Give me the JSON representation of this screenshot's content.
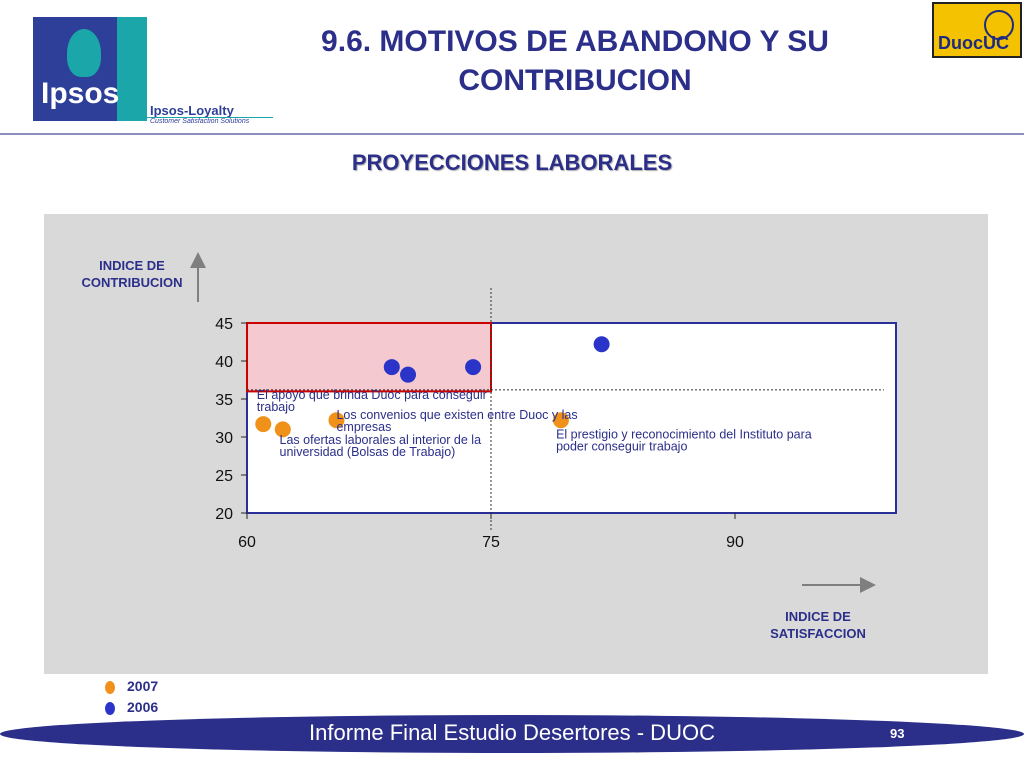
{
  "header": {
    "title_line1": "9.6. MOTIVOS DE ABANDONO Y SU",
    "title_line2": "CONTRIBUCION",
    "ipsos_word": "Ipsos",
    "loyalty_name": "Ipsos-Loyalty",
    "loyalty_tagline": "Customer Satisfaction Solutions",
    "duoc_word": "DuocUC"
  },
  "subtitle": "PROYECCIONES LABORALES",
  "footer": {
    "text": "Informe Final Estudio Desertores - DUOC",
    "page": "93"
  },
  "legend": [
    {
      "label": "2007",
      "color": "#f0921a"
    },
    {
      "label": "2006",
      "color": "#2a34c8"
    }
  ],
  "colors": {
    "navy": "#2b2f8a",
    "orange": "#f0921a",
    "blue_2006": "#2a34c8",
    "highlight_fill": "#f4c9cf",
    "highlight_border": "#cc0000",
    "panel": "#d9d9d9"
  },
  "chart_data": {
    "type": "scatter",
    "ylabel_line1": "INDICE DE",
    "ylabel_line2": "CONTRIBUCION",
    "xlabel_line1": "INDICE DE",
    "xlabel_line2": "SATISFACCION",
    "xlim": [
      60,
      100
    ],
    "ylim": [
      20,
      45
    ],
    "x_ticks": [
      60,
      75,
      90
    ],
    "y_ticks": [
      20,
      25,
      30,
      35,
      40,
      45
    ],
    "reference_lines": {
      "x": 75,
      "y": 36.2
    },
    "highlight_region": {
      "x": [
        60,
        75
      ],
      "y": [
        36,
        45
      ]
    },
    "series": [
      {
        "name": "2007",
        "points": [
          {
            "x": 61.0,
            "y": 31.7
          },
          {
            "x": 62.2,
            "y": 31.0
          },
          {
            "x": 65.5,
            "y": 32.2
          },
          {
            "x": 79.3,
            "y": 32.2
          }
        ]
      },
      {
        "name": "2006",
        "points": [
          {
            "x": 68.9,
            "y": 39.2
          },
          {
            "x": 69.9,
            "y": 38.2
          },
          {
            "x": 73.9,
            "y": 39.2
          },
          {
            "x": 81.8,
            "y": 42.2
          }
        ]
      }
    ],
    "annotations": [
      {
        "lines": [
          "El apoyo que brinda Duoc para conseguir",
          "trabajo"
        ],
        "x": 60.6,
        "y": 35.0
      },
      {
        "lines": [
          "Los convenios que existen entre Duoc y las",
          "empresas"
        ],
        "x": 65.5,
        "y": 32.4
      },
      {
        "lines": [
          "Las ofertas laborales al interior de la",
          "universidad (Bolsas de Trabajo)"
        ],
        "x": 62.0,
        "y": 29.1
      },
      {
        "lines": [
          "El prestigio y reconocimiento del Instituto para",
          "poder conseguir trabajo"
        ],
        "x": 79.0,
        "y": 29.8
      }
    ]
  }
}
